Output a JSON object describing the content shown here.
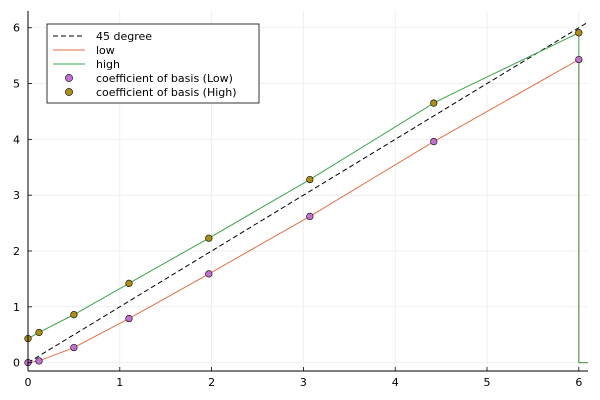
{
  "chart_data": {
    "type": "line",
    "xlim": [
      0,
      6.1
    ],
    "ylim": [
      -0.15,
      6.3
    ],
    "x_ticks": [
      0,
      1,
      2,
      3,
      4,
      5,
      6
    ],
    "y_ticks": [
      0,
      1,
      2,
      3,
      4,
      5,
      6
    ],
    "grid": true,
    "legend_position": "top-left",
    "series": [
      {
        "name": "45 degree",
        "kind": "line",
        "style": "dashed",
        "color": "#000000",
        "x": [
          0,
          6.1
        ],
        "y": [
          0,
          6.1
        ]
      },
      {
        "name": "low",
        "kind": "line",
        "style": "solid",
        "color": "#e26f46",
        "x": [
          0,
          0.12,
          0.5,
          1.1,
          1.97,
          3.07,
          4.42,
          6.0,
          6.0,
          6.1
        ],
        "y": [
          0,
          0.03,
          0.27,
          0.79,
          1.59,
          2.62,
          3.96,
          5.43,
          0.0,
          0.0
        ]
      },
      {
        "name": "high",
        "kind": "line",
        "style": "solid",
        "color": "#3da44d",
        "x": [
          0,
          0.12,
          0.5,
          1.1,
          1.97,
          3.07,
          4.42,
          4.6,
          6.0,
          6.0,
          6.1
        ],
        "y": [
          0.43,
          0.54,
          0.86,
          1.42,
          2.23,
          3.28,
          4.65,
          4.8,
          5.91,
          0.0,
          0.0
        ]
      },
      {
        "name": "coefficient of basis (Low)",
        "kind": "scatter",
        "color": "#c271d2",
        "x": [
          0,
          0.12,
          0.5,
          1.1,
          1.97,
          3.07,
          4.42,
          6.0
        ],
        "y": [
          0,
          0.03,
          0.27,
          0.79,
          1.59,
          2.62,
          3.96,
          5.43
        ]
      },
      {
        "name": "coefficient of basis (High)",
        "kind": "scatter",
        "color": "#ac8d18",
        "x": [
          0,
          0.12,
          0.5,
          1.1,
          1.97,
          3.07,
          4.42,
          6.0
        ],
        "y": [
          0.43,
          0.54,
          0.86,
          1.42,
          2.23,
          3.28,
          4.65,
          5.91
        ]
      }
    ]
  }
}
